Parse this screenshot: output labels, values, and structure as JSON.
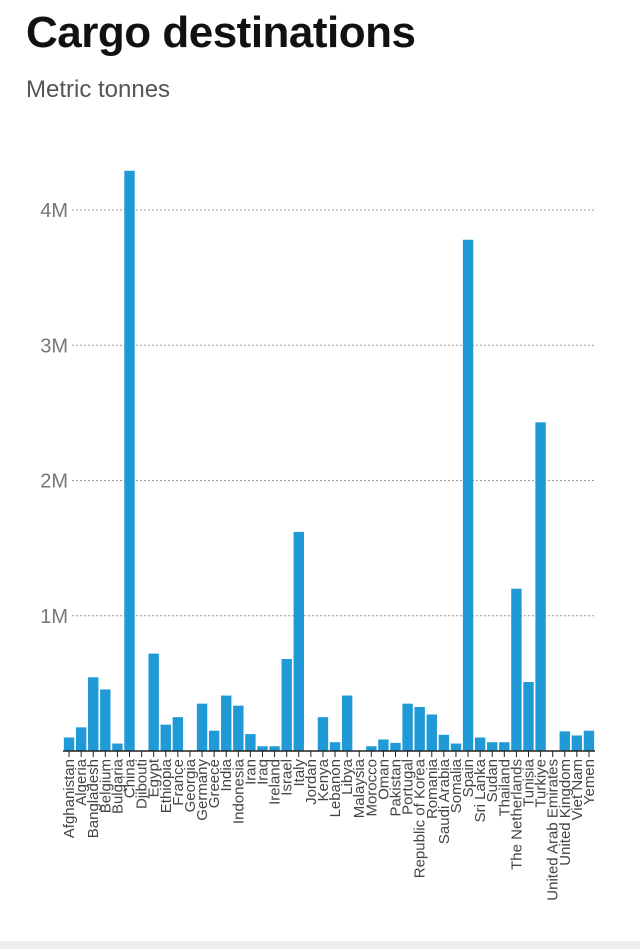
{
  "chart_data": {
    "type": "bar",
    "title": "Cargo destinations",
    "subtitle": "Metric tonnes",
    "xlabel": "",
    "ylabel": "",
    "ylim": [
      0,
      4400000
    ],
    "yticks": [
      1000000,
      2000000,
      3000000,
      4000000
    ],
    "ytick_labels": [
      "1M",
      "2M",
      "3M",
      "4M"
    ],
    "grid": true,
    "bar_color": "#1f9ad6",
    "categories": [
      "Afghanistan",
      "Algeria",
      "Bangladesh",
      "Belgium",
      "Bulgaria",
      "China",
      "Djibouti",
      "Egypt",
      "Ethiopia",
      "France",
      "Georgia",
      "Germany",
      "Greece",
      "India",
      "Indonesia",
      "Iran",
      "Iraq",
      "Ireland",
      "Israel",
      "Italy",
      "Jordan",
      "Kenya",
      "Lebanon",
      "Libya",
      "Malaysia",
      "Morocco",
      "Oman",
      "Pakistan",
      "Portugal",
      "Republic of Korea",
      "Romania",
      "Saudi Arabia",
      "Somalia",
      "Spain",
      "Sri Lanka",
      "Sudan",
      "Thailand",
      "The Netherlands",
      "Tunisia",
      "Turkiye",
      "United Arab Emirates",
      "United Kingdom",
      "Viet Nam",
      "Yemen"
    ],
    "values": [
      100000,
      175000,
      545000,
      455000,
      55000,
      4290000,
      0,
      720000,
      195000,
      250000,
      0,
      350000,
      150000,
      410000,
      335000,
      125000,
      35000,
      35000,
      680000,
      1620000,
      0,
      250000,
      65000,
      410000,
      0,
      35000,
      85000,
      60000,
      350000,
      325000,
      270000,
      120000,
      55000,
      3780000,
      100000,
      65000,
      65000,
      1200000,
      510000,
      2430000,
      0,
      145000,
      115000,
      150000
    ]
  }
}
